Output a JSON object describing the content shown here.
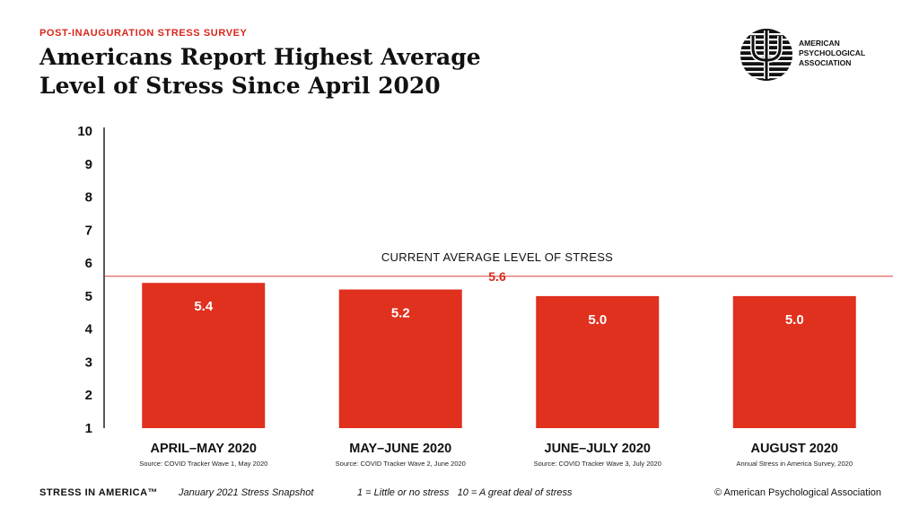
{
  "header": {
    "eyebrow": "POST-INAUGURATION STRESS SURVEY",
    "title_line1": "Americans Report Highest Average",
    "title_line2": "Level of Stress Since April 2020"
  },
  "logo": {
    "icon": "psi-symbol-icon",
    "line1": "AMERICAN",
    "line2": "PSYCHOLOGICAL",
    "line3": "ASSOCIATION"
  },
  "chart_data": {
    "type": "bar",
    "categories": [
      "APRIL–MAY 2020",
      "MAY–JUNE 2020",
      "JUNE–JULY 2020",
      "AUGUST 2020"
    ],
    "sources": [
      "Source: COVID Tracker Wave 1, May 2020",
      "Source: COVID Tracker Wave 2, June 2020",
      "Source: COVID Tracker Wave 3, July 2020",
      "Annual Stress in America Survey, 2020"
    ],
    "values": [
      5.4,
      5.2,
      5.0,
      5.0
    ],
    "value_labels": [
      "5.4",
      "5.2",
      "5.0",
      "5.0"
    ],
    "ylim": [
      1,
      10
    ],
    "yticks": [
      1,
      2,
      3,
      4,
      5,
      6,
      7,
      8,
      9,
      10
    ],
    "reference_line": {
      "value": 5.6,
      "label": "CURRENT AVERAGE LEVEL OF STRESS",
      "value_label": "5.6"
    },
    "bar_color": "#e0301e",
    "accent_color": "#d7261c",
    "grid": false
  },
  "footer": {
    "brand": "STRESS IN AMERICA™",
    "snapshot": "January 2021 Stress Snapshot",
    "scale_legend": "1 = Little or no stress   10 = A great deal of stress",
    "copyright": "© American Psychological Association"
  }
}
